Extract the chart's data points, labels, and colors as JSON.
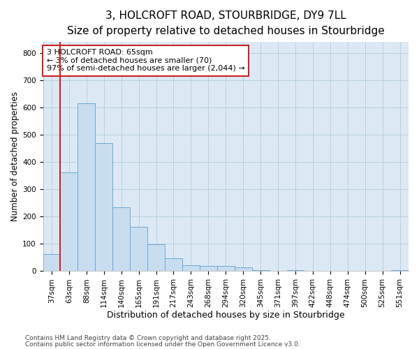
{
  "title": "3, HOLCROFT ROAD, STOURBRIDGE, DY9 7LL",
  "subtitle": "Size of property relative to detached houses in Stourbridge",
  "xlabel": "Distribution of detached houses by size in Stourbridge",
  "ylabel": "Number of detached properties",
  "bin_labels": [
    "37sqm",
    "63sqm",
    "88sqm",
    "114sqm",
    "140sqm",
    "165sqm",
    "191sqm",
    "217sqm",
    "243sqm",
    "268sqm",
    "294sqm",
    "320sqm",
    "345sqm",
    "371sqm",
    "397sqm",
    "422sqm",
    "448sqm",
    "474sqm",
    "500sqm",
    "525sqm",
    "551sqm"
  ],
  "values": [
    62,
    362,
    615,
    470,
    235,
    163,
    98,
    48,
    22,
    20,
    18,
    13,
    5,
    2,
    4,
    2,
    1,
    1,
    1,
    1,
    5
  ],
  "bar_color": "#c9ddf0",
  "bar_edge_color": "#6aaad4",
  "vline_color": "#cc2222",
  "annotation_text": "3 HOLCROFT ROAD: 65sqm\n← 3% of detached houses are smaller (70)\n97% of semi-detached houses are larger (2,044) →",
  "annotation_box_edge": "#cc2222",
  "ylim": [
    0,
    840
  ],
  "yticks": [
    0,
    100,
    200,
    300,
    400,
    500,
    600,
    700,
    800
  ],
  "plot_bg_color": "#dce9f5",
  "fig_bg_color": "#ffffff",
  "grid_color": "#b8cfe0",
  "title_fontsize": 11,
  "subtitle_fontsize": 9.5,
  "xlabel_fontsize": 9,
  "ylabel_fontsize": 8.5,
  "tick_fontsize": 7.5,
  "annot_fontsize": 8,
  "footnote_fontsize": 6.5,
  "footnote1": "Contains HM Land Registry data © Crown copyright and database right 2025.",
  "footnote2": "Contains public sector information licensed under the Open Government Licence v3.0."
}
